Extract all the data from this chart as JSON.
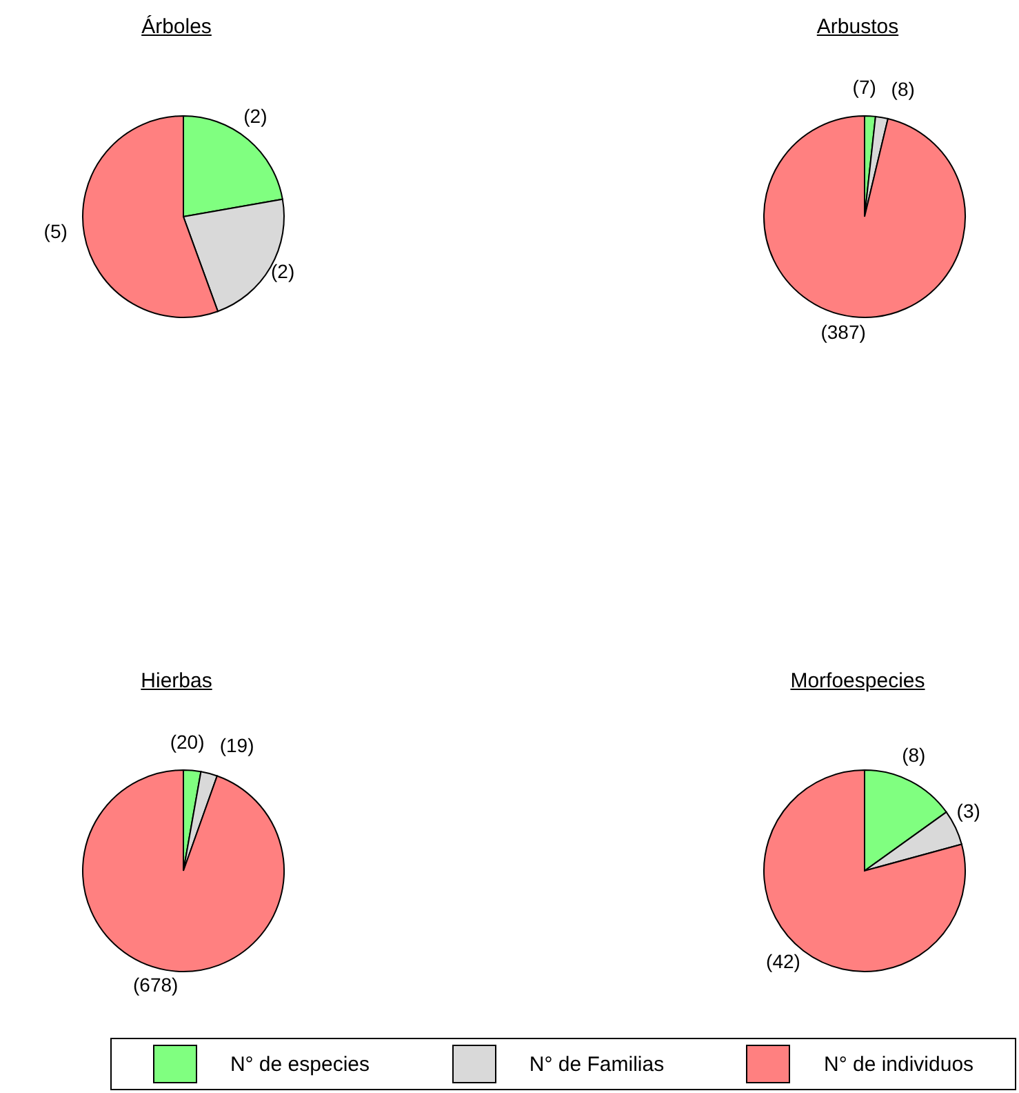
{
  "chart_data": [
    {
      "type": "pie",
      "title": "Árboles",
      "categories": [
        "N° de especies",
        "N° de Familias",
        "N° de individuos"
      ],
      "values": [
        2,
        2,
        5
      ],
      "colors": [
        "#80ff80",
        "#d9d9d9",
        "#ff8080"
      ],
      "value_labels": [
        "(2)",
        "(2)",
        "(5)"
      ],
      "legend": "bottom"
    },
    {
      "type": "pie",
      "title": "Arbustos",
      "categories": [
        null,
        null,
        null
      ],
      "values": [
        7,
        8,
        387
      ],
      "colors": [
        "#80ff80",
        "#d9d9d9",
        "#ff8080"
      ],
      "value_labels": [
        "(7)",
        "(8)",
        "(387)"
      ]
    },
    {
      "type": "pie",
      "title": "Hierbas",
      "categories": [
        null,
        null,
        null
      ],
      "values": [
        20,
        19,
        678
      ],
      "colors": [
        "#80ff80",
        "#d9d9d9",
        "#ff8080"
      ],
      "value_labels": [
        "(20)",
        "(19)",
        "(678)"
      ]
    },
    {
      "type": "pie",
      "title": "Morfoespecies",
      "categories": [
        null,
        null,
        null
      ],
      "values": [
        8,
        3,
        42
      ],
      "colors": [
        "#80ff80",
        "#d9d9d9",
        "#ff8080"
      ],
      "value_labels": [
        "(8)",
        "(3)",
        "(42)"
      ]
    }
  ]
}
